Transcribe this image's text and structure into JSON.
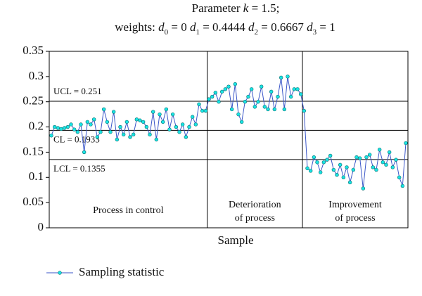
{
  "chart_data": {
    "type": "control",
    "title": [
      {
        "text": "Parameter "
      },
      {
        "text": "k",
        "style": "italic"
      },
      {
        "text": " = 1.5;"
      }
    ],
    "subtitle": [
      {
        "text": "weights: "
      },
      {
        "text": "d",
        "style": "italic"
      },
      {
        "text": "0",
        "sub": true
      },
      {
        "text": " = 0  "
      },
      {
        "text": "d",
        "style": "italic"
      },
      {
        "text": "1",
        "sub": true
      },
      {
        "text": " = 0.4444  "
      },
      {
        "text": "d",
        "style": "italic"
      },
      {
        "text": "2",
        "sub": true
      },
      {
        "text": " = 0.6667  "
      },
      {
        "text": "d",
        "style": "italic"
      },
      {
        "text": "3",
        "sub": true
      },
      {
        "text": " = 1"
      }
    ],
    "xlabel": "Sample",
    "ylim": [
      0,
      0.35
    ],
    "yticks": [
      0,
      0.05,
      0.1,
      0.15,
      0.2,
      0.25,
      0.3,
      0.35
    ],
    "control_lines": [
      {
        "label": "UCL = 0.251",
        "value": 0.251,
        "side": "above"
      },
      {
        "label": "CL = 0.1933",
        "value": 0.1933,
        "side": "below"
      },
      {
        "label": "LCL = 0.1355",
        "value": 0.1355,
        "side": "below"
      }
    ],
    "phases": [
      {
        "lines": [
          "Process in control"
        ],
        "count": 48
      },
      {
        "lines": [
          "Deterioration",
          "of process"
        ],
        "count": 29
      },
      {
        "lines": [
          "Improvement",
          "of process"
        ],
        "count": 32
      }
    ],
    "series": [
      {
        "name": "Sampling statistic",
        "color": "#3a56c8",
        "marker_color": "#19e3e3",
        "values": [
          0.183,
          0.2,
          0.198,
          0.196,
          0.198,
          0.2,
          0.205,
          0.195,
          0.19,
          0.205,
          0.15,
          0.21,
          0.205,
          0.215,
          0.18,
          0.19,
          0.235,
          0.21,
          0.19,
          0.23,
          0.175,
          0.2,
          0.185,
          0.21,
          0.18,
          0.185,
          0.215,
          0.213,
          0.21,
          0.2,
          0.185,
          0.23,
          0.175,
          0.225,
          0.21,
          0.235,
          0.195,
          0.225,
          0.2,
          0.19,
          0.205,
          0.18,
          0.2,
          0.22,
          0.205,
          0.245,
          0.232,
          0.232,
          0.255,
          0.26,
          0.268,
          0.25,
          0.27,
          0.275,
          0.28,
          0.235,
          0.285,
          0.225,
          0.21,
          0.25,
          0.26,
          0.275,
          0.24,
          0.25,
          0.28,
          0.24,
          0.235,
          0.27,
          0.235,
          0.26,
          0.298,
          0.235,
          0.3,
          0.26,
          0.275,
          0.275,
          0.265,
          0.232,
          0.118,
          0.113,
          0.14,
          0.13,
          0.11,
          0.13,
          0.135,
          0.143,
          0.115,
          0.105,
          0.125,
          0.1,
          0.12,
          0.09,
          0.115,
          0.14,
          0.138,
          0.078,
          0.14,
          0.145,
          0.12,
          0.115,
          0.155,
          0.13,
          0.125,
          0.15,
          0.12,
          0.135,
          0.1,
          0.083,
          0.168
        ]
      }
    ]
  }
}
